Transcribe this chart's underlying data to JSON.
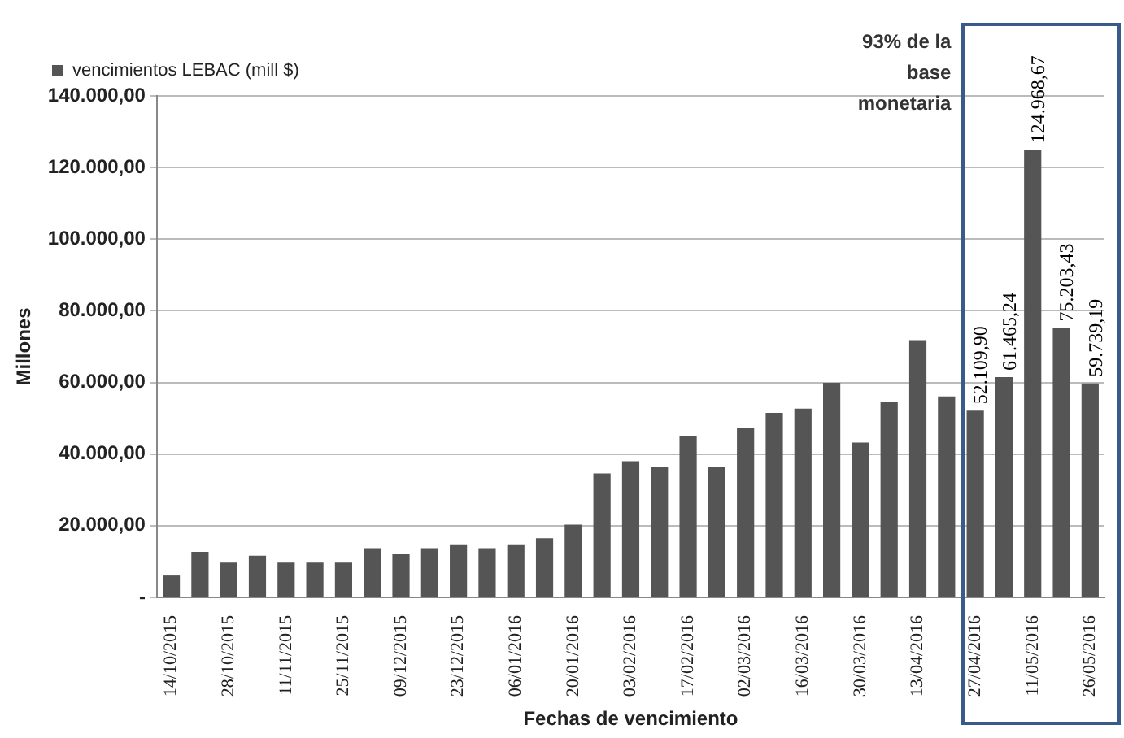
{
  "chart_data": {
    "type": "bar",
    "xlabel": "Fechas de vencimiento",
    "ylabel": "Millones",
    "categories": [
      "14/10/2015",
      null,
      "28/10/2015",
      null,
      "11/11/2015",
      null,
      "25/11/2015",
      null,
      "09/12/2015",
      null,
      "23/12/2015",
      null,
      "06/01/2016",
      null,
      "20/01/2016",
      null,
      "03/02/2016",
      null,
      "17/02/2016",
      null,
      "02/03/2016",
      null,
      "16/03/2016",
      null,
      "30/03/2016",
      null,
      "13/04/2016",
      null,
      "27/04/2016",
      null,
      "11/05/2016",
      null,
      "26/05/2016"
    ],
    "series": [
      {
        "name": "vencimientos LEBAC (mill $)",
        "color": "#555555",
        "values": [
          6100,
          12700,
          9700,
          11600,
          9700,
          9700,
          9700,
          13700,
          12000,
          13700,
          14800,
          13700,
          14800,
          16500,
          20300,
          34600,
          38000,
          36400,
          45100,
          36400,
          47400,
          51500,
          52700,
          59900,
          43200,
          54600,
          71800,
          56100,
          52109.9,
          61465.24,
          124968.67,
          75203.43,
          59739.19
        ],
        "value_labels": [
          null,
          null,
          null,
          null,
          null,
          null,
          null,
          null,
          null,
          null,
          null,
          null,
          null,
          null,
          null,
          null,
          null,
          null,
          null,
          null,
          null,
          null,
          null,
          null,
          null,
          null,
          null,
          null,
          "52.109,90",
          "61.465,24",
          "124.968,67",
          "75.203,43",
          "59.739,19"
        ]
      }
    ],
    "ylim": [
      0,
      140000
    ],
    "yticks": [
      {
        "value": 0,
        "label": "-"
      },
      {
        "value": 20000,
        "label": "20.000,00"
      },
      {
        "value": 40000,
        "label": "40.000,00"
      },
      {
        "value": 60000,
        "label": "60.000,00"
      },
      {
        "value": 80000,
        "label": "80.000,00"
      },
      {
        "value": 100000,
        "label": "100.000,00"
      },
      {
        "value": 120000,
        "label": "120.000,00"
      },
      {
        "value": 140000,
        "label": "140.000,00"
      }
    ],
    "grid": "y",
    "legend": "top",
    "annotations": [
      "93% de la base monetaria"
    ]
  }
}
